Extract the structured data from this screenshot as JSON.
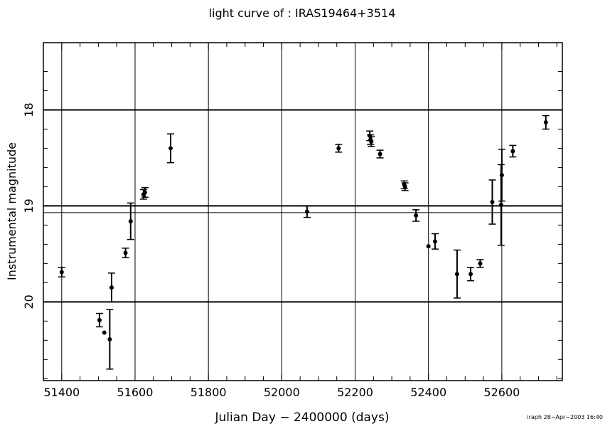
{
  "chart_data": {
    "type": "scatter",
    "title": "light curve of : IRAS19464+3514",
    "xlabel": "Julian Day − 2400000 (days)",
    "ylabel": "Instrumental magnitude",
    "footer": "iraph 28−Apr−2003 16:40",
    "xlim": [
      51350,
      52765
    ],
    "ylim": [
      20.82,
      17.3
    ],
    "y_inverted": true,
    "x_ticks": [
      51400,
      51600,
      51800,
      52000,
      52200,
      52400,
      52600
    ],
    "x_tick_labels": [
      "51400",
      "51600",
      "51800",
      "52000",
      "52200",
      "52400",
      "52600"
    ],
    "y_ticks": [
      18,
      19,
      20
    ],
    "y_tick_labels": [
      "18",
      "19",
      "20"
    ],
    "x_grid": true,
    "h_lines": [
      18.0,
      19.0,
      19.07,
      20.0
    ],
    "points": [
      {
        "x": 51400,
        "y": 19.69,
        "err": 0.05
      },
      {
        "x": 51503,
        "y": 20.19,
        "err": 0.07
      },
      {
        "x": 51516,
        "y": 20.32,
        "err": 0.0
      },
      {
        "x": 51531,
        "y": 20.39,
        "err": 0.31
      },
      {
        "x": 51536,
        "y": 19.85,
        "err": 0.15
      },
      {
        "x": 51574,
        "y": 19.49,
        "err": 0.05
      },
      {
        "x": 51588,
        "y": 19.16,
        "err": 0.19
      },
      {
        "x": 51623,
        "y": 18.88,
        "err": 0.05
      },
      {
        "x": 51627,
        "y": 18.86,
        "err": 0.05
      },
      {
        "x": 51697,
        "y": 18.4,
        "err": 0.15
      },
      {
        "x": 52069,
        "y": 19.06,
        "err": 0.06
      },
      {
        "x": 52155,
        "y": 18.4,
        "err": 0.04
      },
      {
        "x": 52240,
        "y": 18.27,
        "err": 0.05
      },
      {
        "x": 52242,
        "y": 18.31,
        "err": 0.05
      },
      {
        "x": 52244,
        "y": 18.33,
        "err": 0.05
      },
      {
        "x": 52268,
        "y": 18.46,
        "err": 0.04
      },
      {
        "x": 52334,
        "y": 18.78,
        "err": 0.04
      },
      {
        "x": 52336,
        "y": 18.8,
        "err": 0.04
      },
      {
        "x": 52366,
        "y": 19.1,
        "err": 0.06
      },
      {
        "x": 52400,
        "y": 19.42,
        "err": 0.0
      },
      {
        "x": 52418,
        "y": 19.37,
        "err": 0.08
      },
      {
        "x": 52478,
        "y": 19.71,
        "err": 0.25
      },
      {
        "x": 52515,
        "y": 19.71,
        "err": 0.07
      },
      {
        "x": 52541,
        "y": 19.6,
        "err": 0.04
      },
      {
        "x": 52574,
        "y": 18.96,
        "err": 0.23
      },
      {
        "x": 52598,
        "y": 18.99,
        "err": 0.42
      },
      {
        "x": 52600,
        "y": 18.68,
        "err": 0.27
      },
      {
        "x": 52630,
        "y": 18.43,
        "err": 0.06
      },
      {
        "x": 52720,
        "y": 18.13,
        "err": 0.07
      }
    ]
  }
}
